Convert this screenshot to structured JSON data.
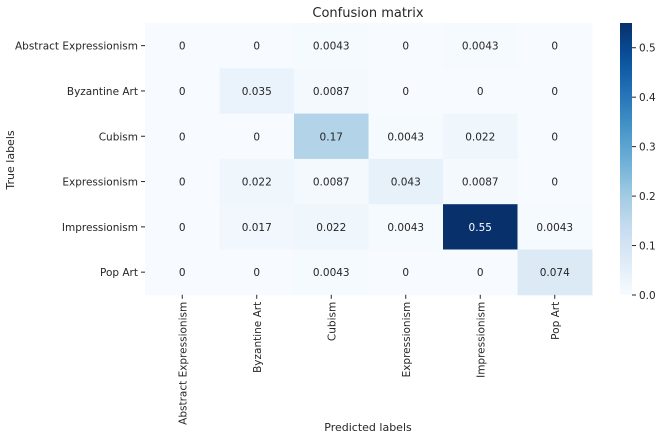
{
  "chart_data": {
    "type": "heatmap",
    "title": "Confusion matrix",
    "xlabel": "Predicted labels",
    "ylabel": "True labels",
    "row_labels": [
      "Abstract Expressionism",
      "Byzantine Art",
      "Cubism",
      "Expressionism",
      "Impressionism",
      "Pop Art"
    ],
    "col_labels": [
      "Abstract Expressionism",
      "Byzantine Art",
      "Cubism",
      "Expressionism",
      "Impressionism",
      "Pop Art"
    ],
    "values": [
      [
        0,
        0,
        0.0043,
        0,
        0.0043,
        0
      ],
      [
        0,
        0.035,
        0.0087,
        0,
        0,
        0
      ],
      [
        0,
        0,
        0.17,
        0.0043,
        0.022,
        0
      ],
      [
        0,
        0.022,
        0.0087,
        0.043,
        0.0087,
        0
      ],
      [
        0,
        0.017,
        0.022,
        0.0043,
        0.55,
        0.0043
      ],
      [
        0,
        0,
        0.0043,
        0,
        0,
        0.074
      ]
    ],
    "value_labels": [
      [
        "0",
        "0",
        "0.0043",
        "0",
        "0.0043",
        "0"
      ],
      [
        "0",
        "0.035",
        "0.0087",
        "0",
        "0",
        "0"
      ],
      [
        "0",
        "0",
        "0.17",
        "0.0043",
        "0.022",
        "0"
      ],
      [
        "0",
        "0.022",
        "0.0087",
        "0.043",
        "0.0087",
        "0"
      ],
      [
        "0",
        "0.017",
        "0.022",
        "0.0043",
        "0.55",
        "0.0043"
      ],
      [
        "0",
        "0",
        "0.0043",
        "0",
        "0",
        "0.074"
      ]
    ],
    "colormap": "Blues",
    "color_range": [
      0,
      0.55
    ],
    "colorbar_ticks": [
      0.0,
      0.1,
      0.2,
      0.3,
      0.4,
      0.5
    ],
    "colorbar_tick_labels": [
      "0.0",
      "0.1",
      "0.2",
      "0.3",
      "0.4",
      "0.5"
    ],
    "grid": false
  }
}
